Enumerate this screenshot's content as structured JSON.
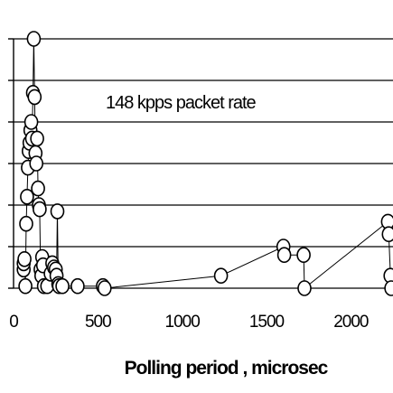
{
  "chart_data": {
    "type": "scatter",
    "title": "",
    "xlabel": "Polling period , microsec",
    "ylabel": "",
    "xlim": [
      0,
      2250
    ],
    "ylim": [
      0,
      6
    ],
    "x_ticks": [
      0,
      500,
      1000,
      1500,
      2000
    ],
    "x_tick_labels": [
      "0",
      "500",
      "1000",
      "1500",
      "2000"
    ],
    "y_ticks": [
      0,
      1,
      2,
      3,
      4,
      5,
      6
    ],
    "y_tick_labels": [],
    "grid": "horizontal",
    "annotation": "148 kpps packet rate",
    "marker": "open-circle",
    "connected": true,
    "series": [
      {
        "points": [
          [
            60,
            0.45
          ],
          [
            60,
            0.6
          ],
          [
            65,
            0.7
          ],
          [
            70,
            0.05
          ],
          [
            75,
            1.55
          ],
          [
            80,
            2.2
          ],
          [
            85,
            2.9
          ],
          [
            90,
            3.3
          ],
          [
            95,
            3.5
          ],
          [
            100,
            3.8
          ],
          [
            105,
            4.0
          ],
          [
            110,
            3.6
          ],
          [
            115,
            4.7
          ],
          [
            120,
            6.0
          ],
          [
            125,
            4.6
          ],
          [
            130,
            3.25
          ],
          [
            135,
            3.0
          ],
          [
            140,
            3.6
          ],
          [
            145,
            2.4
          ],
          [
            150,
            2.0
          ],
          [
            155,
            1.9
          ],
          [
            160,
            0.45
          ],
          [
            165,
            0.3
          ],
          [
            170,
            0.75
          ],
          [
            175,
            0.55
          ],
          [
            180,
            0.05
          ],
          [
            200,
            0.05
          ],
          [
            220,
            0.35
          ],
          [
            230,
            0.6
          ],
          [
            240,
            0.5
          ],
          [
            250,
            0.45
          ],
          [
            255,
            0.3
          ],
          [
            260,
            1.85
          ],
          [
            265,
            0.1
          ],
          [
            270,
            0.05
          ],
          [
            290,
            0.05
          ],
          [
            380,
            0.05
          ],
          [
            530,
            0.05
          ],
          [
            540,
            0.0
          ],
          [
            1230,
            0.3
          ],
          [
            1600,
            1.0
          ],
          [
            1605,
            0.8
          ],
          [
            1720,
            0.8
          ],
          [
            1725,
            0.0
          ],
          [
            2220,
            1.6
          ],
          [
            2225,
            1.3
          ],
          [
            2235,
            0.3
          ],
          [
            2240,
            0.0
          ]
        ]
      }
    ]
  }
}
